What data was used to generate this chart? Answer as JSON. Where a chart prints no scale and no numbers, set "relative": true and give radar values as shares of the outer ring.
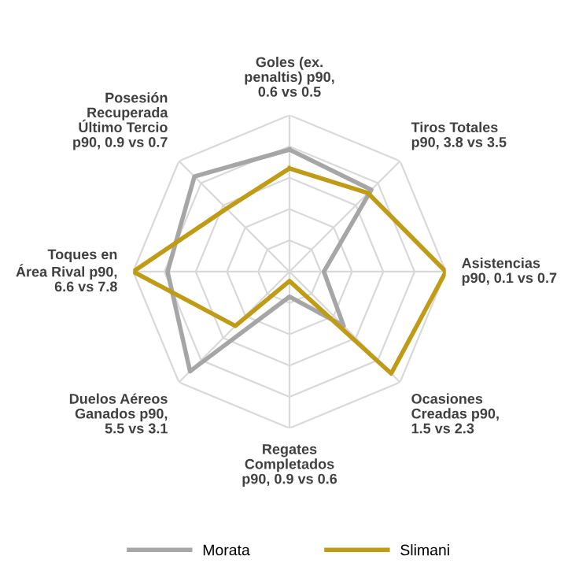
{
  "chart_data": {
    "type": "radar",
    "relative": true,
    "grid": true,
    "legend": "bottom",
    "line_style": "solid",
    "marker": "none",
    "categories": [
      "Goles (ex.\npenaltis) p90,\n0.6 vs 0.5",
      "Tiros Totales\np90, 3.8 vs 3.5",
      "Asistencias\np90, 0.1 vs 0.7",
      "Ocasiones\nCreadas p90,\n1.5 vs 2.3",
      "Regates\nCompletados\np90, 0.9 vs 0.6",
      "Duelos Aéreos\nGanados p90,\n5.5 vs 3.1",
      "Toques en\nÁrea Rival p90,\n6.6 vs 7.8",
      "Posesión\nRecuperada\nÚltimo Tercio\np90, 0.9 vs 0.7"
    ],
    "series": [
      {
        "name": "Morata",
        "color": "#a6a6a6",
        "values": [
          0.78,
          0.74,
          0.22,
          0.49,
          0.16,
          0.9,
          0.78,
          0.86
        ]
      },
      {
        "name": "Slimani",
        "color": "#bf9b16",
        "values": [
          0.66,
          0.71,
          1.0,
          0.92,
          0.06,
          0.49,
          1.0,
          0.57
        ]
      }
    ]
  }
}
